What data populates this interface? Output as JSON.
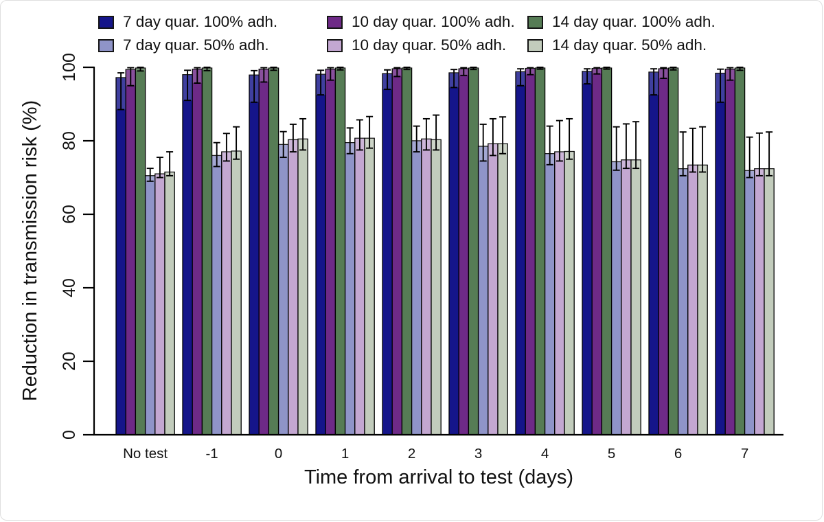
{
  "figure": {
    "background": "#ffffff",
    "border_color": "#dedede"
  },
  "legend": {
    "position": "top",
    "items": [
      {
        "label": "7 day quar. 100% adh.",
        "color": "#15158a"
      },
      {
        "label": "7 day quar. 50% adh.",
        "color": "#8f94c8"
      },
      {
        "label": "10 day quar. 100% adh.",
        "color": "#6e2a87"
      },
      {
        "label": "10 day quar. 50% adh.",
        "color": "#c3a7d1"
      },
      {
        "label": "14 day quar. 100% adh.",
        "color": "#567c55"
      },
      {
        "label": "14 day quar. 50% adh.",
        "color": "#c2ccbc"
      }
    ]
  },
  "chart_data": {
    "type": "bar",
    "title": "",
    "xlabel": "Time from arrival to test (days)",
    "ylabel": "Reduction in transmission risk (%)",
    "ylim": [
      0,
      100
    ],
    "yticks": [
      0,
      20,
      40,
      60,
      80,
      100
    ],
    "grid": false,
    "legend_position": "top",
    "error_bars": true,
    "categories": [
      "No test",
      "-1",
      "0",
      "1",
      "2",
      "3",
      "4",
      "5",
      "6",
      "7"
    ],
    "series": [
      {
        "name": "7 day quar. 100% adh.",
        "color": "#15158a",
        "values": [
          97.2,
          98.0,
          97.9,
          98.1,
          98.3,
          98.5,
          98.8,
          98.9,
          98.7,
          98.4
        ],
        "ci_low": [
          88.5,
          91.0,
          90.5,
          92.5,
          94.0,
          94.5,
          95.0,
          95.5,
          92.5,
          90.5
        ],
        "ci_high": [
          98.5,
          99.2,
          99.1,
          99.2,
          99.3,
          99.4,
          99.6,
          99.6,
          99.6,
          99.5
        ]
      },
      {
        "name": "10 day quar. 100% adh.",
        "color": "#6e2a87",
        "values": [
          99.4,
          99.5,
          99.5,
          99.5,
          99.6,
          99.6,
          99.7,
          99.7,
          99.6,
          99.5
        ],
        "ci_low": [
          95.0,
          95.7,
          96.0,
          96.5,
          97.5,
          97.8,
          98.0,
          98.2,
          97.0,
          96.5
        ],
        "ci_high": [
          99.9,
          99.9,
          99.9,
          99.9,
          99.9,
          99.9,
          99.9,
          99.9,
          99.9,
          99.9
        ]
      },
      {
        "name": "14 day quar. 100% adh.",
        "color": "#567c55",
        "values": [
          99.8,
          99.8,
          99.8,
          99.8,
          99.8,
          99.8,
          99.8,
          99.8,
          99.8,
          99.8
        ],
        "ci_low": [
          99.0,
          99.1,
          99.2,
          99.3,
          99.4,
          99.4,
          99.5,
          99.5,
          99.3,
          99.2
        ],
        "ci_high": [
          100,
          100,
          100,
          100,
          100,
          100,
          100,
          100,
          100,
          100
        ]
      },
      {
        "name": "7 day quar. 50% adh.",
        "color": "#8f94c8",
        "values": [
          70.5,
          76.0,
          79.0,
          79.5,
          80.0,
          78.5,
          76.5,
          74.3,
          72.4,
          71.9
        ],
        "ci_low": [
          69.0,
          73.0,
          75.5,
          76.5,
          77.0,
          74.5,
          73.5,
          72.0,
          70.5,
          70.0
        ],
        "ci_high": [
          72.5,
          79.5,
          82.5,
          83.5,
          84.0,
          84.5,
          84.0,
          83.8,
          82.4,
          81.0
        ]
      },
      {
        "name": "10 day quar. 50% adh.",
        "color": "#c3a7d1",
        "values": [
          71.0,
          77.0,
          80.3,
          80.7,
          80.5,
          79.2,
          77.0,
          74.8,
          73.4,
          72.4
        ],
        "ci_low": [
          70.0,
          74.5,
          77.0,
          77.5,
          77.5,
          76.0,
          74.5,
          72.5,
          71.5,
          70.5
        ],
        "ci_high": [
          75.5,
          82.0,
          84.5,
          85.7,
          86.0,
          86.0,
          85.5,
          84.6,
          83.4,
          82.1
        ]
      },
      {
        "name": "14 day quar. 50% adh.",
        "color": "#c2ccbc",
        "values": [
          71.5,
          77.2,
          80.5,
          80.7,
          80.3,
          79.2,
          77.1,
          74.8,
          73.4,
          72.4
        ],
        "ci_low": [
          70.5,
          75.0,
          77.5,
          78.0,
          77.5,
          76.5,
          75.0,
          72.5,
          71.5,
          70.5
        ],
        "ci_high": [
          77.0,
          83.8,
          86.0,
          86.6,
          87.0,
          86.5,
          86.0,
          85.2,
          83.8,
          82.4
        ]
      }
    ]
  }
}
